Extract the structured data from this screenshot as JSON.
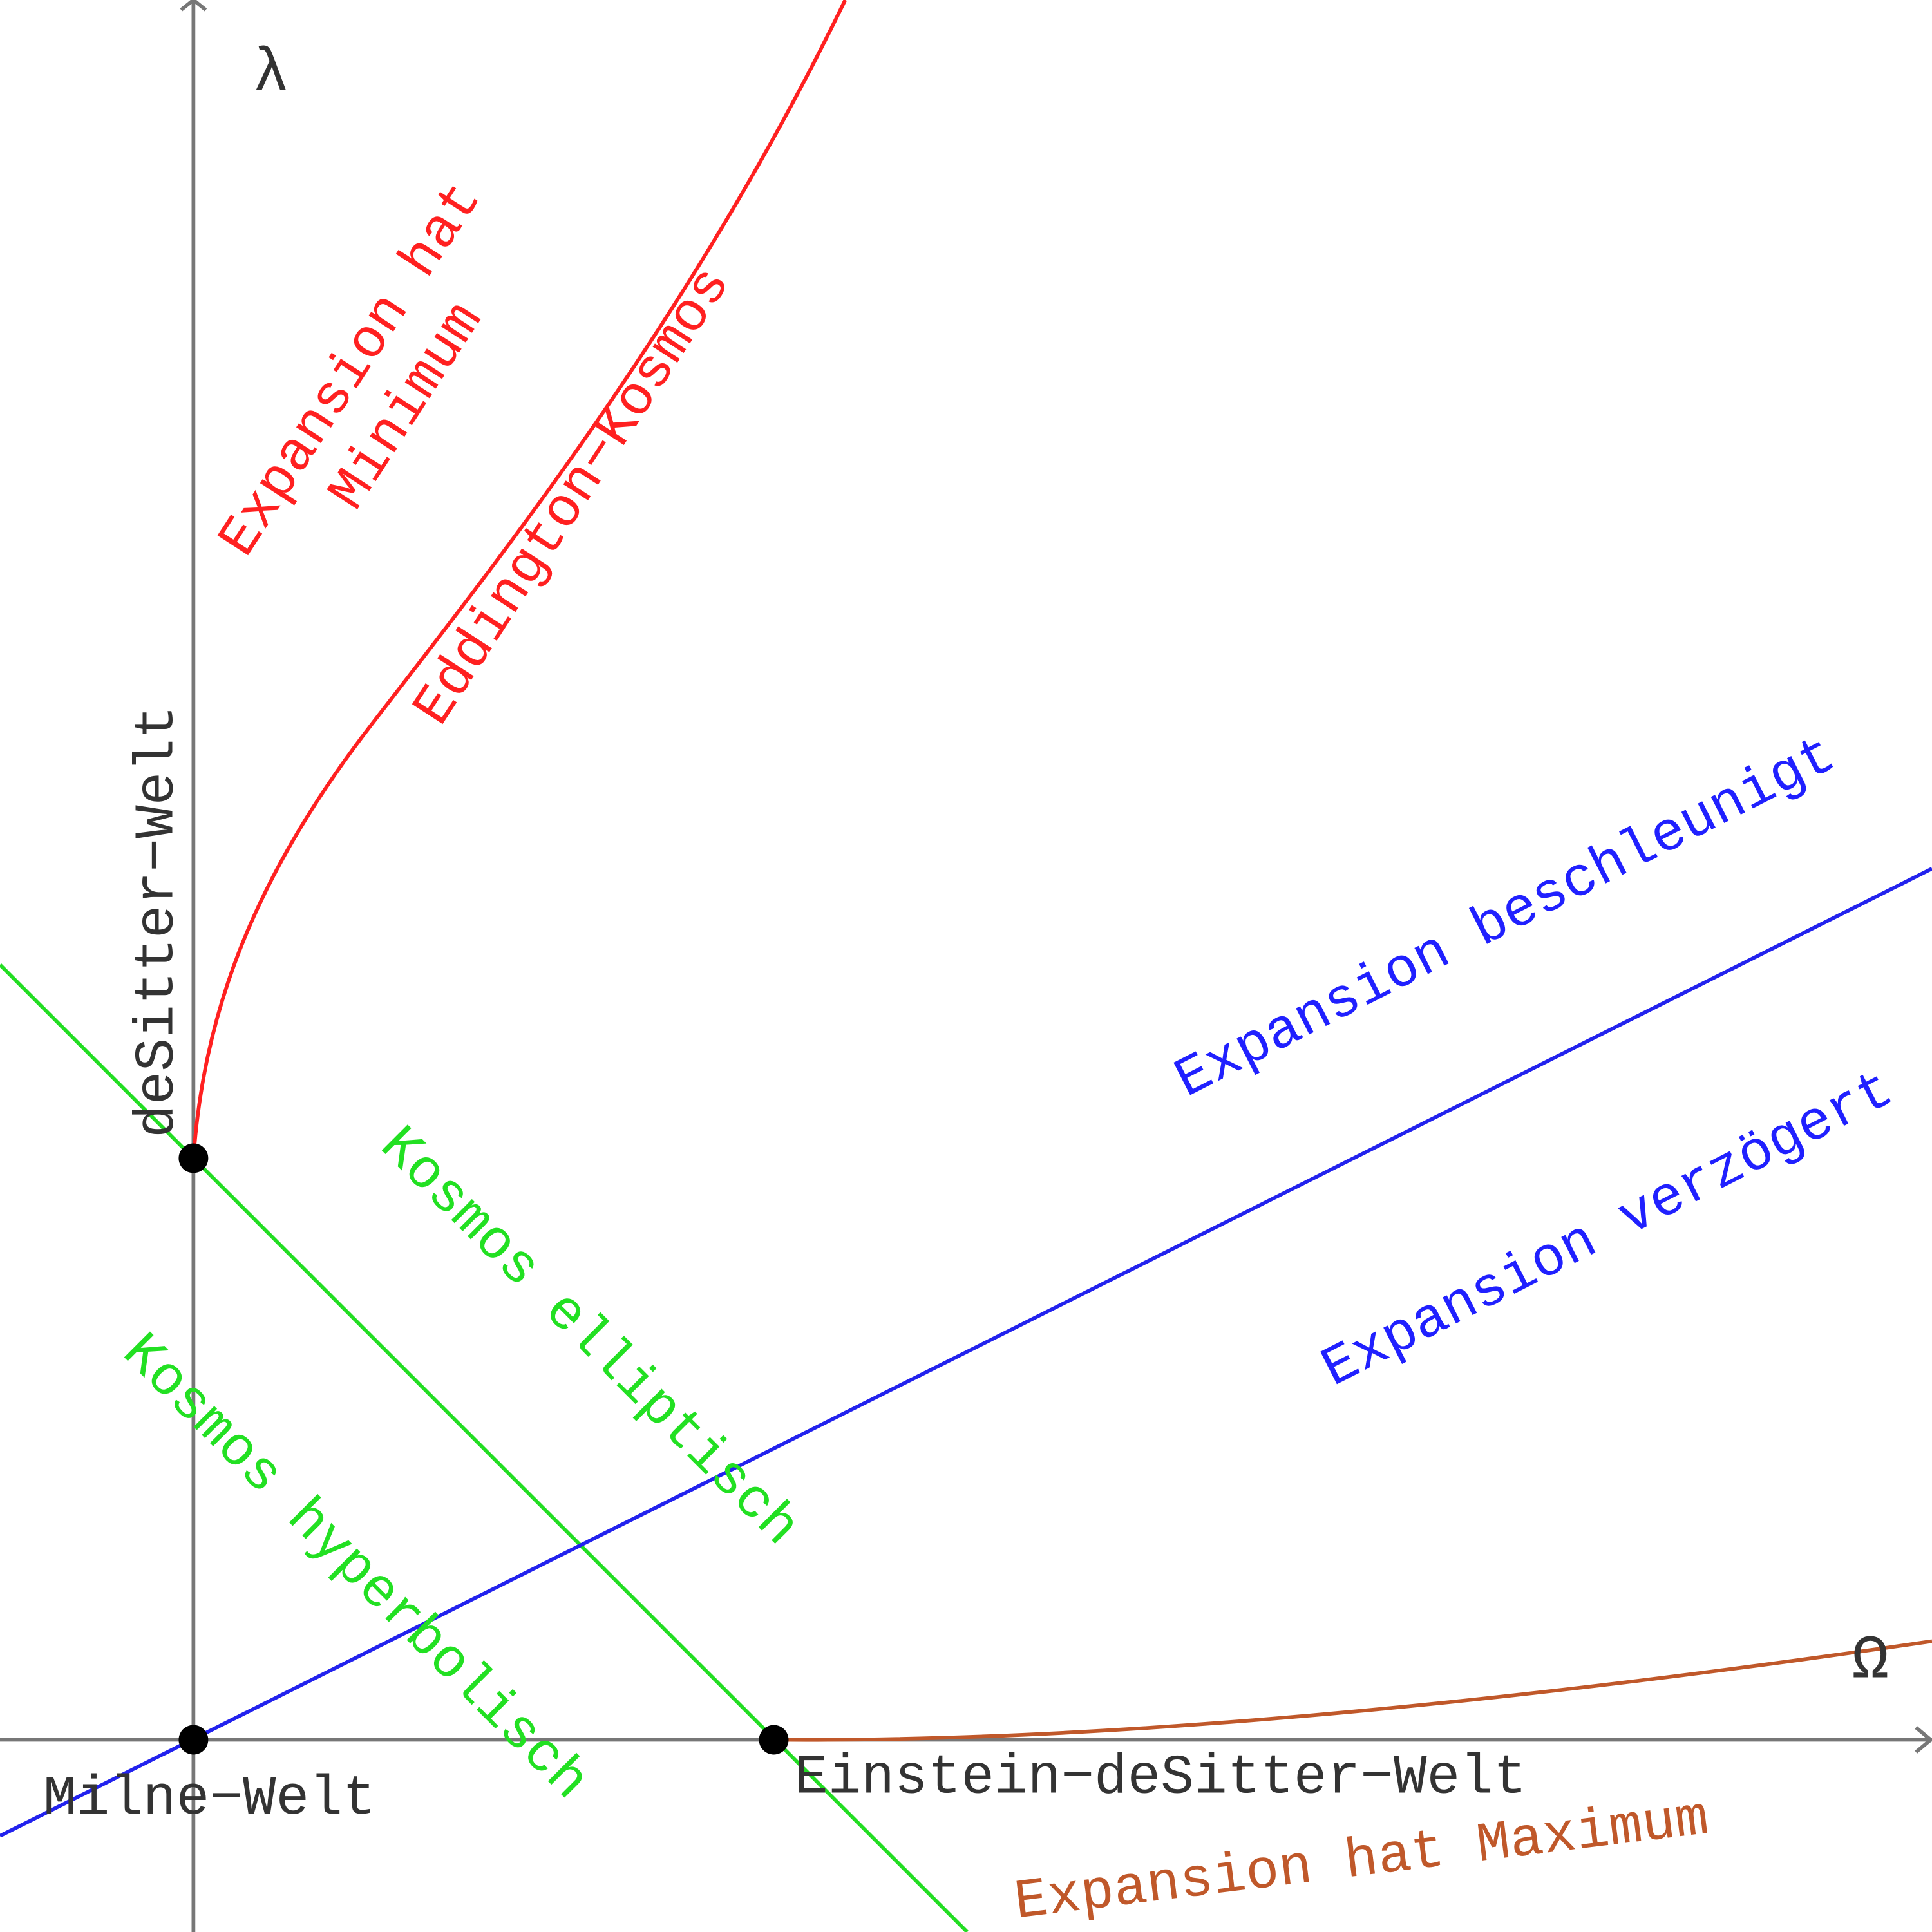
{
  "axes": {
    "y_label": "λ",
    "x_label": "Ω"
  },
  "points": [
    {
      "label": "deSitter−Welt"
    },
    {
      "label": "Milne−Welt"
    },
    {
      "label": "Einstein−deSitter−Welt"
    }
  ],
  "regions": {
    "minimum": [
      "Expansion hat",
      "Minimum"
    ],
    "eddington": "Eddington−Kosmos",
    "accelerated": "Expansion beschleunigt",
    "decelerated": "Expansion verzögert",
    "elliptic": "Kosmos elliptisch",
    "hyperbolic": "Kosmos hyperbolisch",
    "maximum": "Expansion hat Maximum"
  }
}
